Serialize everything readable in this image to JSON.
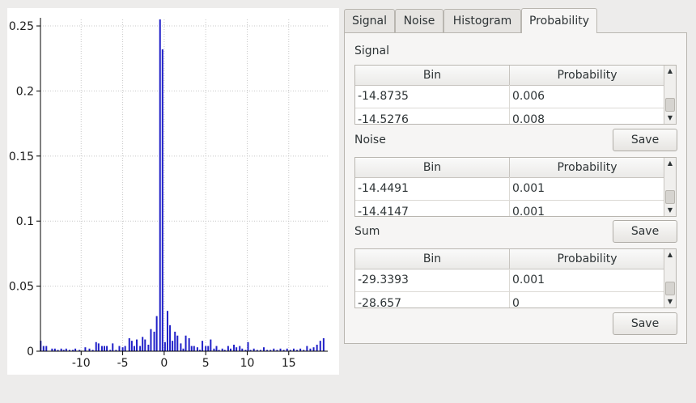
{
  "chart_data": {
    "type": "bar",
    "xlim": [
      -14.9,
      19.7
    ],
    "ylim": [
      0,
      0.255
    ],
    "xticks": [
      -10,
      -5,
      0,
      5,
      10,
      15
    ],
    "xtick_labels": [
      "-10",
      "-5",
      "0",
      "5",
      "10",
      "15"
    ],
    "yticks": [
      0,
      0.05,
      0.1,
      0.15,
      0.2,
      0.25
    ],
    "ytick_labels": [
      "0",
      "0.05",
      "0.1",
      "0.15",
      "0.2",
      "0.25"
    ],
    "grid": true,
    "bar_color": "#2020c8",
    "x": [
      -14.87,
      -14.53,
      -14.19,
      -13.5,
      -13.16,
      -12.8,
      -12.4,
      -12.1,
      -11.8,
      -11.4,
      -11.0,
      -10.7,
      -10.2,
      -9.5,
      -9.0,
      -8.6,
      -8.2,
      -7.9,
      -7.5,
      -7.2,
      -6.9,
      -6.5,
      -6.2,
      -5.8,
      -5.4,
      -5.0,
      -4.7,
      -4.2,
      -3.9,
      -3.6,
      -3.3,
      -2.9,
      -2.6,
      -2.3,
      -1.9,
      -1.6,
      -1.2,
      -0.9,
      -0.5,
      -0.2,
      0.1,
      0.4,
      0.7,
      1.0,
      1.3,
      1.6,
      2.0,
      2.3,
      2.6,
      3.0,
      3.3,
      3.6,
      4.0,
      4.3,
      4.6,
      5.0,
      5.3,
      5.6,
      6.0,
      6.3,
      6.6,
      7.0,
      7.3,
      7.7,
      8.0,
      8.4,
      8.7,
      9.1,
      9.4,
      9.8,
      10.1,
      10.4,
      10.8,
      11.2,
      11.6,
      12.0,
      12.4,
      12.8,
      13.2,
      13.6,
      14.0,
      14.4,
      14.8,
      15.2,
      15.6,
      16.0,
      16.4,
      16.8,
      17.2,
      17.6,
      18.0,
      18.4,
      18.8,
      19.2
    ],
    "values": [
      0.008,
      0.004,
      0.004,
      0.002,
      0.002,
      0.001,
      0.002,
      0.001,
      0.002,
      0.001,
      0.001,
      0.002,
      0.001,
      0.003,
      0.002,
      0.001,
      0.007,
      0.006,
      0.004,
      0.004,
      0.004,
      0.001,
      0.006,
      0.001,
      0.004,
      0.003,
      0.004,
      0.01,
      0.008,
      0.004,
      0.009,
      0.004,
      0.011,
      0.009,
      0.005,
      0.017,
      0.015,
      0.027,
      0.255,
      0.232,
      0.007,
      0.031,
      0.02,
      0.008,
      0.015,
      0.012,
      0.006,
      0.002,
      0.012,
      0.01,
      0.004,
      0.004,
      0.003,
      0.001,
      0.008,
      0.004,
      0.004,
      0.009,
      0.002,
      0.004,
      0.001,
      0.002,
      0.001,
      0.004,
      0.002,
      0.005,
      0.003,
      0.004,
      0.002,
      0.001,
      0.007,
      0.001,
      0.002,
      0.001,
      0.001,
      0.003,
      0.001,
      0.001,
      0.002,
      0.001,
      0.002,
      0.001,
      0.002,
      0.001,
      0.002,
      0.001,
      0.002,
      0.001,
      0.004,
      0.002,
      0.003,
      0.005,
      0.008,
      0.01
    ]
  },
  "tabs": [
    {
      "label": "Signal",
      "active": false
    },
    {
      "label": "Noise",
      "active": false
    },
    {
      "label": "Histogram",
      "active": false
    },
    {
      "label": "Probability",
      "active": true
    }
  ],
  "probability": {
    "signal": {
      "label": "Signal",
      "columns": [
        "Bin",
        "Probability"
      ],
      "rows": [
        [
          "-14.8735",
          "0.006"
        ],
        [
          "-14.5276",
          "0.008"
        ]
      ],
      "save_label": "Save"
    },
    "noise": {
      "label": "Noise",
      "columns": [
        "Bin",
        "Probability"
      ],
      "rows": [
        [
          "-14.4491",
          "0.001"
        ],
        [
          "-14.4147",
          "0.001"
        ]
      ],
      "save_label": "Save"
    },
    "sum": {
      "label": "Sum",
      "columns": [
        "Bin",
        "Probability"
      ],
      "rows": [
        [
          "-29.3393",
          "0.001"
        ],
        [
          "-28.657",
          "0"
        ]
      ],
      "save_label": "Save"
    }
  }
}
